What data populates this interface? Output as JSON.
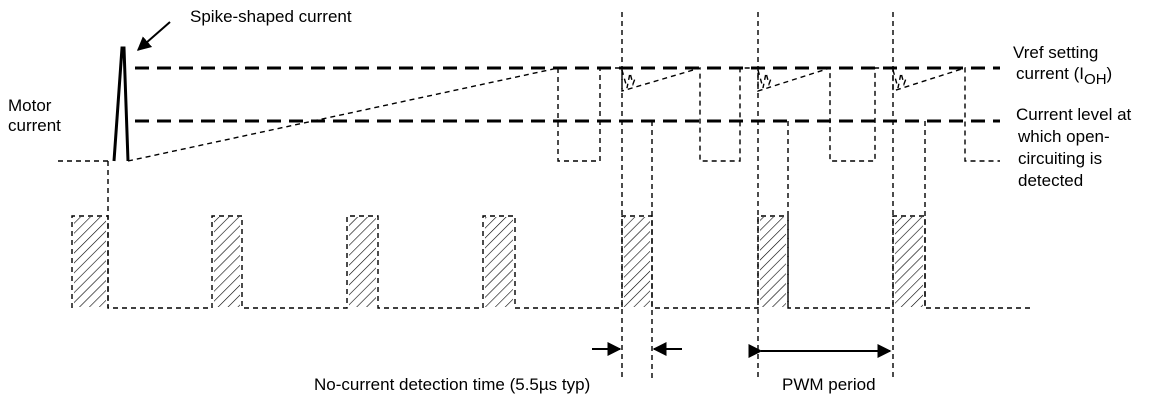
{
  "labels": {
    "spike": "Spike-shaped current",
    "motor_line1": "Motor",
    "motor_line2": "current",
    "vref_line1": "Vref setting",
    "vref_line2_main": "current (I",
    "vref_line2_sub": "OH",
    "vref_line2_end": ")",
    "open_line1": "Current level at",
    "open_line2": "which open-",
    "open_line3": "circuiting is",
    "open_line4": "detected",
    "no_current": "No-current detection time (5.5µs typ)",
    "pwm_period": "PWM period"
  }
}
